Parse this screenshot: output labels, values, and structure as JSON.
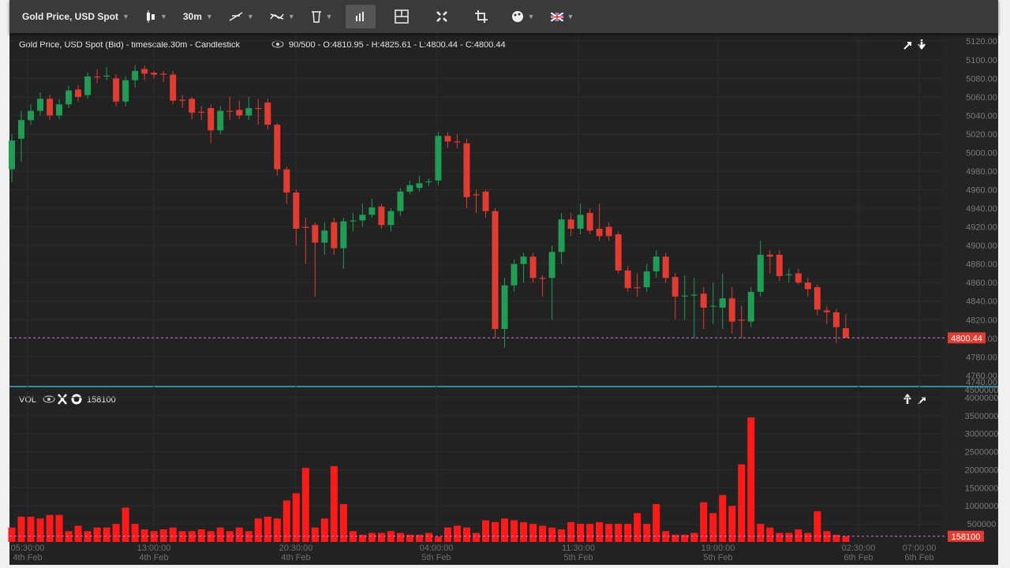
{
  "toolbar": {
    "instrument": "Gold Price, USD Spot",
    "timeframe": "30m"
  },
  "chart_data": {
    "type": "candlestick",
    "title": "Gold Price, USD Spot (Bid) - timescale.30m - Candlestick",
    "info": "90/500 - O:4810.95 - H:4825.61 - L:4800.44 - C:4800.44",
    "up_color": "#1f9d55",
    "down_color": "#e23b31",
    "open": [
      4982,
      5015,
      5035,
      5045,
      5058,
      5040,
      5052,
      5068,
      5062,
      5082,
      5082,
      5080,
      5055,
      5078,
      5090,
      5086,
      5085,
      5084,
      5057,
      5058,
      5044,
      5048,
      5024,
      5045,
      5046,
      5040,
      5048,
      5054,
      5030,
      4982,
      4957,
      4920,
      4922,
      4903,
      4925,
      4897,
      4926,
      4927,
      4933,
      4942,
      4922,
      4937,
      4958,
      4962,
      4968,
      4970,
      5018,
      5012,
      5010,
      4955,
      4958,
      4937,
      4810,
      4857,
      4880,
      4888,
      4865,
      4865,
      4893,
      4928,
      4918,
      4935,
      4918,
      4920,
      4912,
      4873,
      4855,
      4855,
      4872,
      4888,
      4866,
      4845,
      4846,
      4848,
      4834,
      4833,
      4843,
      4820,
      4818,
      4850,
      4890,
      4890,
      4868,
      4870,
      4860,
      4855,
      4830,
      4828,
      4810.95
    ],
    "high": [
      5020,
      5045,
      5052,
      5065,
      5062,
      5058,
      5072,
      5073,
      5086,
      5090,
      5092,
      5084,
      5082,
      5094,
      5094,
      5088,
      5088,
      5088,
      5062,
      5060,
      5050,
      5052,
      5050,
      5060,
      5056,
      5060,
      5058,
      5058,
      5032,
      4985,
      4960,
      4930,
      4925,
      4925,
      4930,
      4930,
      4935,
      4945,
      4950,
      4945,
      4940,
      4962,
      4970,
      4975,
      4972,
      5022,
      5022,
      5020,
      5015,
      4960,
      4960,
      4940,
      4865,
      4885,
      4892,
      4892,
      4868,
      4900,
      4935,
      4935,
      4945,
      4940,
      4945,
      4925,
      4915,
      4878,
      4870,
      4880,
      4895,
      4892,
      4870,
      4868,
      4865,
      4855,
      4860,
      4870,
      4855,
      4835,
      4855,
      4905,
      4895,
      4895,
      4875,
      4875,
      4865,
      4858,
      4835,
      4832,
      4825.61
    ],
    "low": [
      4968,
      4990,
      5030,
      5040,
      5035,
      5036,
      5048,
      5055,
      5058,
      5075,
      5078,
      5050,
      5050,
      5070,
      5078,
      5080,
      5076,
      5052,
      5048,
      5036,
      5035,
      5010,
      5020,
      5035,
      5036,
      5035,
      5030,
      5025,
      4975,
      4945,
      4900,
      4880,
      4845,
      4890,
      4890,
      4875,
      4915,
      4920,
      4930,
      4918,
      4915,
      4932,
      4955,
      4958,
      4964,
      4965,
      5005,
      5005,
      4940,
      4935,
      4930,
      4800,
      4790,
      4850,
      4860,
      4860,
      4845,
      4820,
      4880,
      4910,
      4912,
      4912,
      4905,
      4905,
      4870,
      4850,
      4845,
      4850,
      4865,
      4860,
      4820,
      4820,
      4800,
      4810,
      4815,
      4810,
      4805,
      4800,
      4812,
      4845,
      4870,
      4862,
      4860,
      4858,
      4845,
      4825,
      4815,
      4795,
      4800.44
    ],
    "close": [
      5013,
      5035,
      5045,
      5058,
      5040,
      5052,
      5067,
      5060,
      5082,
      5081,
      5083,
      5055,
      5078,
      5088,
      5085,
      5084,
      5084,
      5056,
      5056,
      5043,
      5043,
      5024,
      5045,
      5044,
      5040,
      5048,
      5047,
      5030,
      4982,
      4957,
      4918,
      4919,
      4903,
      4916,
      4897,
      4926,
      4927,
      4933,
      4941,
      4922,
      4937,
      4958,
      4965,
      4967,
      4969,
      5018,
      5012,
      5011,
      4952,
      4954,
      4937,
      4810,
      4857,
      4880,
      4888,
      4865,
      4864,
      4893,
      4928,
      4918,
      4933,
      4916,
      4910,
      4910,
      4873,
      4854,
      4854,
      4872,
      4888,
      4865,
      4845,
      4846,
      4847,
      4833,
      4835,
      4843,
      4818,
      4819,
      4850,
      4890,
      4888,
      4867,
      4869,
      4860,
      4853,
      4831,
      4828,
      4812,
      4800.44
    ],
    "ylim": [
      4748,
      5127
    ],
    "yticks": [
      {
        "value": 4740,
        "label": "4740.00"
      },
      {
        "value": 4760,
        "label": "4760.00"
      },
      {
        "value": 4780,
        "label": "4780.00"
      },
      {
        "value": 4800,
        "label": "4800.00"
      },
      {
        "value": 4820,
        "label": "4820.00"
      },
      {
        "value": 4840,
        "label": "4840.00"
      },
      {
        "value": 4860,
        "label": "4860.00"
      },
      {
        "value": 4880,
        "label": "4880.00"
      },
      {
        "value": 4900,
        "label": "4900.00"
      },
      {
        "value": 4920,
        "label": "4920.00"
      },
      {
        "value": 4940,
        "label": "4940.00"
      },
      {
        "value": 4960,
        "label": "4960.00"
      },
      {
        "value": 4980,
        "label": "4980.00"
      },
      {
        "value": 5000,
        "label": "5000.00"
      },
      {
        "value": 5020,
        "label": "5020.00"
      },
      {
        "value": 5040,
        "label": "5040.00"
      },
      {
        "value": 5060,
        "label": "5060.00"
      },
      {
        "value": 5080,
        "label": "5080.00"
      },
      {
        "value": 5100,
        "label": "5100.00"
      },
      {
        "value": 5120,
        "label": "5120.00"
      }
    ],
    "last_price": {
      "value": 4800.44,
      "label": "4800.44"
    },
    "xticks": [
      {
        "time": "05:30:00",
        "date": "4th Feb"
      },
      {
        "time": "13:00:00",
        "date": "4th Feb"
      },
      {
        "time": "20:30:00",
        "date": "4th Feb"
      },
      {
        "time": "04:00:00",
        "date": "5th Feb"
      },
      {
        "time": "11:30:00",
        "date": "5th Feb"
      },
      {
        "time": "19:00:00",
        "date": "5th Feb"
      },
      {
        "time": "02:30:00",
        "date": "6th Feb"
      },
      {
        "time": "07:00:00",
        "date": "6th Feb"
      }
    ],
    "volume": {
      "name": "VOL",
      "color": "#ff1a1a",
      "values": [
        400000,
        700000,
        700000,
        650000,
        750000,
        750000,
        300000,
        450000,
        300000,
        400000,
        400000,
        500000,
        950000,
        500000,
        350000,
        300000,
        350000,
        400000,
        300000,
        300000,
        350000,
        300000,
        400000,
        300000,
        400000,
        300000,
        650000,
        700000,
        650000,
        1150000,
        1350000,
        2050000,
        400000,
        650000,
        2100000,
        1050000,
        300000,
        200000,
        250000,
        250000,
        300000,
        250000,
        200000,
        200000,
        250000,
        150000,
        400000,
        450000,
        400000,
        250000,
        600000,
        550000,
        650000,
        600000,
        550000,
        500000,
        450000,
        400000,
        350000,
        550000,
        500000,
        500000,
        550000,
        500000,
        500000,
        500000,
        800000,
        500000,
        1050000,
        300000,
        200000,
        200000,
        250000,
        1100000,
        800000,
        1300000,
        1000000,
        2150000,
        3450000,
        500000,
        400000,
        250000,
        250000,
        350000,
        250000,
        850000,
        300000,
        200000,
        158100
      ],
      "last": 158100,
      "ylim": [
        0,
        4260000
      ],
      "yticks": [
        500000,
        1000000,
        1500000,
        2000000,
        2500000,
        3000000,
        3500000,
        4000000,
        4500000
      ]
    }
  }
}
